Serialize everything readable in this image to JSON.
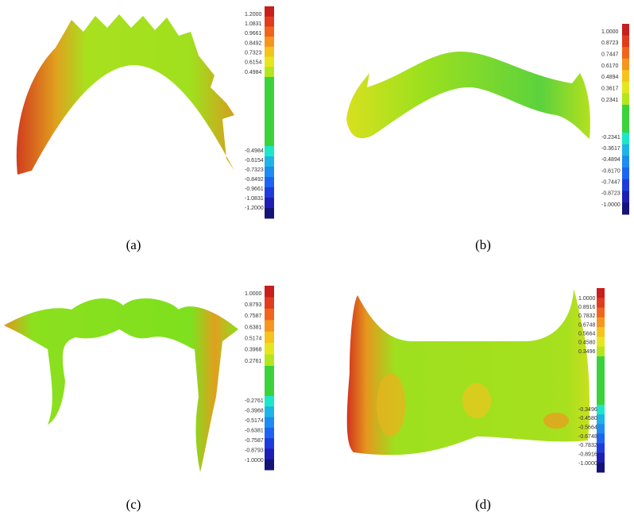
{
  "panels": [
    {
      "caption": "(a)",
      "scale": [
        "1.2000",
        "1.0831",
        "0.9661",
        "0.8492",
        "0.7323",
        "0.6154",
        "0.4984",
        "-0.4984",
        "-0.6154",
        "-0.7323",
        "-0.8492",
        "-0.9661",
        "-1.0831",
        "-1.2000"
      ]
    },
    {
      "caption": "(b)",
      "scale": [
        "1.0000",
        "0.8723",
        "0.7447",
        "0.6170",
        "0.4894",
        "0.3617",
        "0.2341",
        "-0.2341",
        "-0.3617",
        "-0.4894",
        "-0.6170",
        "-0.7447",
        "-0.8723",
        "-1.0000"
      ]
    },
    {
      "caption": "(c)",
      "scale": [
        "1.0000",
        "0.8793",
        "0.7587",
        "0.6381",
        "0.5174",
        "0.3968",
        "0.2761",
        "-0.2761",
        "-0.3968",
        "-0.5174",
        "-0.6381",
        "-0.7587",
        "-0.8793",
        "-1.0000"
      ]
    },
    {
      "caption": "(d)",
      "scale": [
        "1.0000",
        "0.8916",
        "0.7832",
        "0.6748",
        "0.5664",
        "0.4580",
        "0.3496",
        "-0.3496",
        "-0.4580",
        "-0.5664",
        "-0.6748",
        "-0.7832",
        "-0.8916",
        "-1.0000"
      ]
    }
  ]
}
